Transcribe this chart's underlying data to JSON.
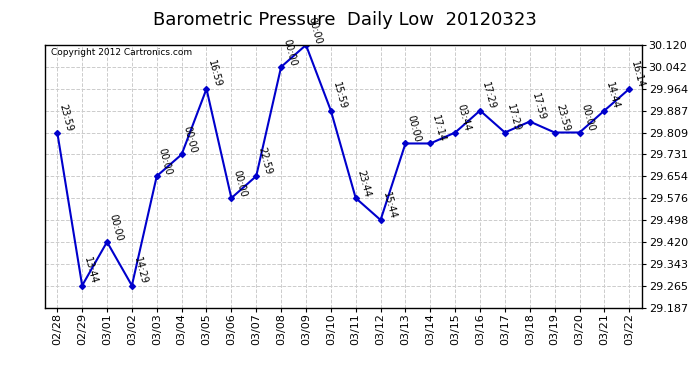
{
  "title": "Barometric Pressure  Daily Low  20120323",
  "copyright": "Copyright 2012 Cartronics.com",
  "x_labels": [
    "02/28",
    "02/29",
    "03/01",
    "03/02",
    "03/03",
    "03/04",
    "03/05",
    "03/06",
    "03/07",
    "03/08",
    "03/09",
    "03/10",
    "03/11",
    "03/12",
    "03/13",
    "03/14",
    "03/15",
    "03/16",
    "03/17",
    "03/18",
    "03/19",
    "03/20",
    "03/21",
    "03/22"
  ],
  "y_values": [
    29.809,
    29.265,
    29.42,
    29.265,
    29.654,
    29.731,
    29.964,
    29.576,
    29.654,
    30.042,
    30.12,
    29.887,
    29.576,
    29.498,
    29.77,
    29.77,
    29.809,
    29.887,
    29.809,
    29.848,
    29.809,
    29.809,
    29.887,
    29.964
  ],
  "time_labels": [
    "23:59",
    "13:44",
    "00:00",
    "14:29",
    "00:00",
    "00:00",
    "16:59",
    "00:00",
    "22:59",
    "00:00",
    "00:00",
    "15:59",
    "23:44",
    "15:44",
    "00:00",
    "17:14",
    "03:44",
    "17:29",
    "17:29",
    "17:59",
    "23:59",
    "00:00",
    "14:44",
    "16:14"
  ],
  "line_color": "#0000CC",
  "marker_color": "#0000CC",
  "background_color": "#ffffff",
  "grid_color": "#cccccc",
  "ylim_min": 29.187,
  "ylim_max": 30.12,
  "ytick_values": [
    29.187,
    29.265,
    29.343,
    29.42,
    29.498,
    29.576,
    29.654,
    29.731,
    29.809,
    29.887,
    29.964,
    30.042,
    30.12
  ],
  "title_fontsize": 13,
  "tick_fontsize": 8,
  "label_fontsize": 7
}
